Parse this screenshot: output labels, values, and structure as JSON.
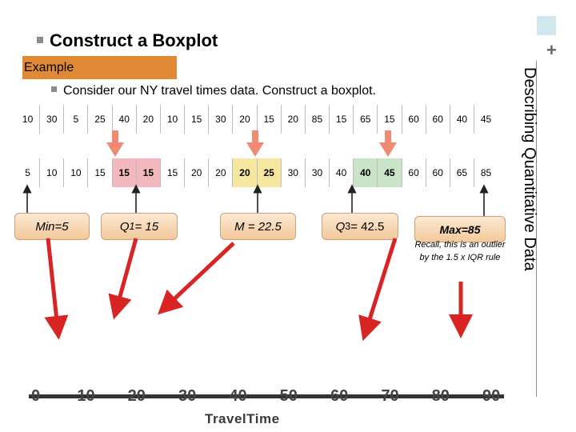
{
  "slide": {
    "title": "Construct a Boxplot",
    "example_label": "Example",
    "bullet": "Consider our NY travel times data. Construct a boxplot.",
    "side_title": "Describing Quantitative Data",
    "plus": "+"
  },
  "raw_row": [
    "10",
    "30",
    "5",
    "25",
    "40",
    "20",
    "10",
    "15",
    "30",
    "20",
    "15",
    "20",
    "85",
    "15",
    "65",
    "15",
    "60",
    "60",
    "40",
    "45"
  ],
  "sorted_row": [
    "5",
    "10",
    "10",
    "15",
    "15",
    "15",
    "15",
    "20",
    "20",
    "20",
    "25",
    "30",
    "30",
    "40",
    "40",
    "45",
    "60",
    "60",
    "65",
    "85"
  ],
  "callouts": {
    "min": "Min=5",
    "q1_prefix": "Q",
    "q1_sub": "1",
    "q1_suffix": " = 15",
    "median": "M = 22.5",
    "q3_prefix": "Q",
    "q3_sub": "3",
    "q3_suffix": "= 42.5",
    "max": "Max=85",
    "note": "Recall, this is an outlier by the 1.5 x IQR rule"
  },
  "number_line": {
    "ticks": [
      "0",
      "10",
      "20",
      "30",
      "40",
      "50",
      "60",
      "70",
      "80",
      "90"
    ],
    "title": "TravelTime"
  },
  "colors": {
    "example_bar": "#e08a36",
    "arrow_red": "#d92424",
    "down_arrow": "#f08a72",
    "q1_highlight": "#f2b8bd",
    "median_highlight": "#f5e6a0",
    "q3_highlight": "#c9e4c6"
  }
}
